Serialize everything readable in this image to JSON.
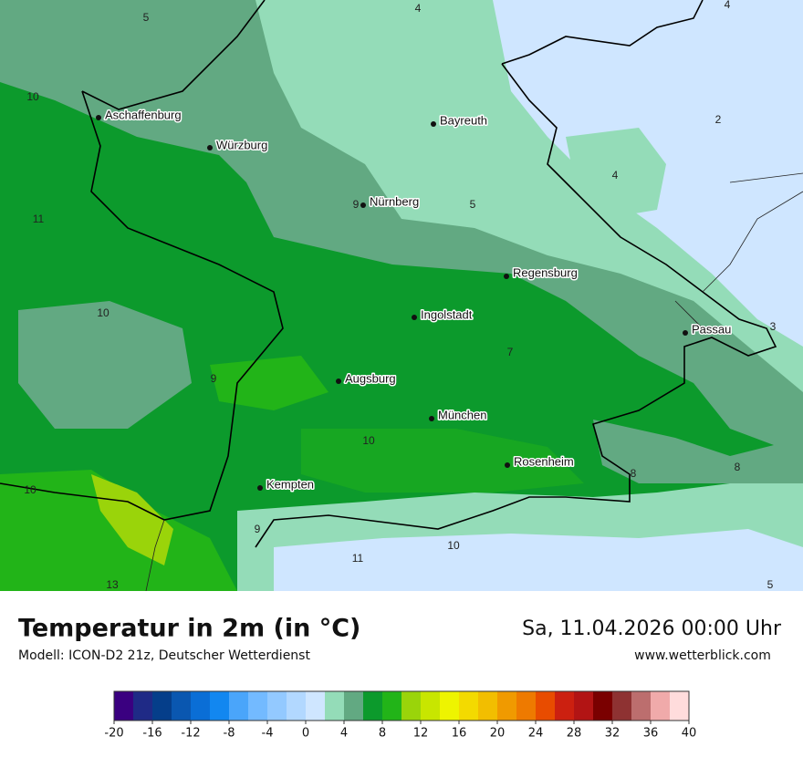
{
  "map": {
    "cities": [
      "Aschaffenburg",
      "Würzburg",
      "Bayreuth",
      "Nürnberg",
      "Regensburg",
      "Ingolstadt",
      "Passau",
      "Augsburg",
      "München",
      "Rosenheim",
      "Kempten"
    ],
    "value_labels": [
      5,
      4,
      4,
      10,
      2,
      4,
      9,
      5,
      11,
      10,
      3,
      7,
      9,
      10,
      8,
      8,
      10,
      9,
      10,
      11,
      13,
      5
    ]
  },
  "header": {
    "title": "Temperatur in 2m (in °C)",
    "subtitle": "Modell: ICON-D2 21z, Deutscher Wetterdienst",
    "date": "Sa, 11.04.2026 00:00 Uhr",
    "website": "www.wetterblick.com"
  },
  "legend": {
    "range": [
      -20,
      40
    ],
    "ticks": [
      -20,
      -16,
      -12,
      -8,
      -4,
      0,
      4,
      8,
      12,
      16,
      20,
      24,
      28,
      32,
      36,
      40
    ],
    "colors": [
      "#3a0080",
      "#1f2a86",
      "#053e8a",
      "#0a57b0",
      "#0a6ed6",
      "#1287f0",
      "#4aa5fa",
      "#73baff",
      "#93c9ff",
      "#b2d8ff",
      "#cfe6ff",
      "#94dcb8",
      "#62a982",
      "#0c9a2c",
      "#22b418",
      "#9ad40a",
      "#c8e600",
      "#eef400",
      "#f3da00",
      "#f2be00",
      "#f09a00",
      "#ee7a00",
      "#e84c00",
      "#cc2010",
      "#b21414",
      "#7a0000",
      "#8e3232",
      "#bc6e6e",
      "#f0aaaa",
      "#ffdcdc"
    ]
  }
}
